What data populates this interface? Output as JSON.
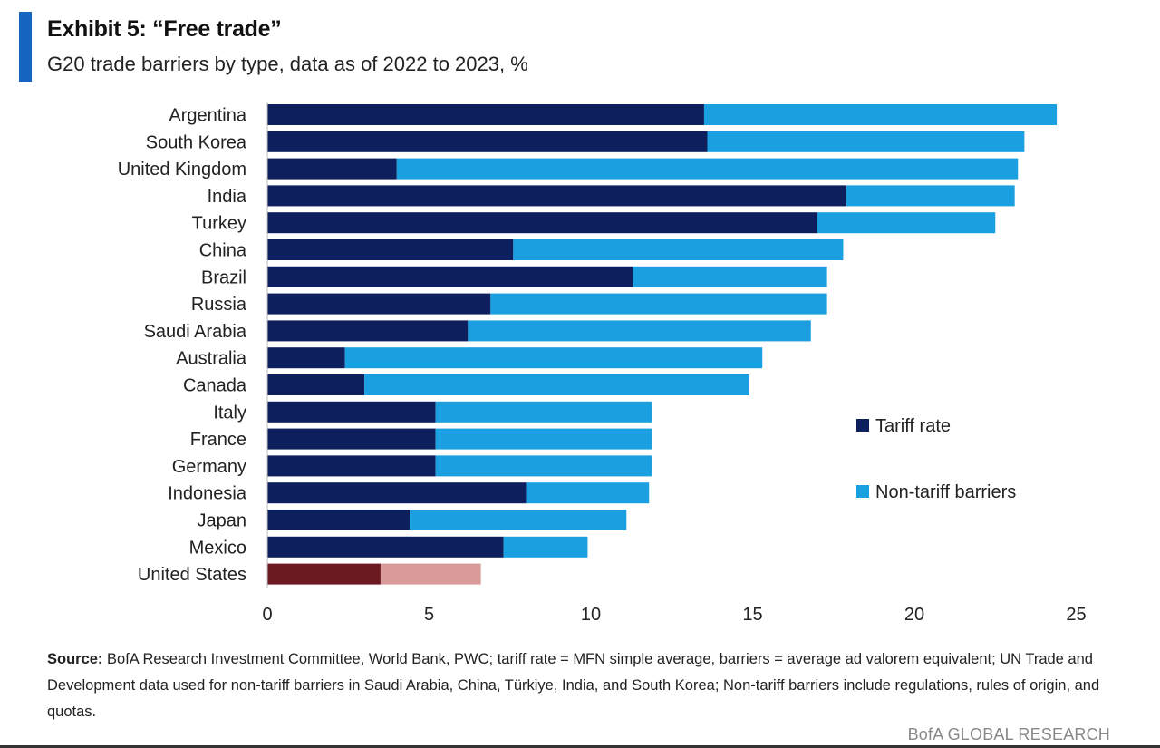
{
  "header": {
    "title": "Exhibit 5: “Free trade”",
    "subtitle": "G20 trade barriers by type, data as of 2022 to 2023, %"
  },
  "colors": {
    "accent": "#1565c0",
    "tariff": "#0d1f5c",
    "non_tariff": "#1a9fe0",
    "us_tariff": "#6b1a22",
    "us_non_tariff": "#d99a9a"
  },
  "chart_data": {
    "type": "bar",
    "orientation": "horizontal",
    "stacked": true,
    "categories": [
      "Argentina",
      "South Korea",
      "United Kingdom",
      "India",
      "Turkey",
      "China",
      "Brazil",
      "Russia",
      "Saudi Arabia",
      "Australia",
      "Canada",
      "Italy",
      "France",
      "Germany",
      "Indonesia",
      "Japan",
      "Mexico",
      "United States"
    ],
    "series": [
      {
        "name": "Tariff rate",
        "values": [
          13.5,
          13.6,
          4.0,
          17.9,
          17.0,
          7.6,
          11.3,
          6.9,
          6.2,
          2.4,
          3.0,
          5.2,
          5.2,
          5.2,
          8.0,
          4.4,
          7.3,
          3.5
        ]
      },
      {
        "name": "Non-tariff barriers",
        "values": [
          10.9,
          9.8,
          19.2,
          5.2,
          5.5,
          10.2,
          6.0,
          10.4,
          10.6,
          12.9,
          11.9,
          6.7,
          6.7,
          6.7,
          3.8,
          6.7,
          2.6,
          3.1
        ]
      }
    ],
    "xlim": [
      0,
      25
    ],
    "xticks": [
      "0",
      "5",
      "10",
      "15",
      "20",
      "25"
    ],
    "legend": "right",
    "grid": false
  },
  "footer": {
    "source_label": "Source:",
    "source_text": " BofA Research Investment Committee, World Bank, PWC; tariff rate = MFN simple average, barriers = average ad valorem equivalent; UN Trade and Development data used for non-tariff barriers in Saudi Arabia, China, Türkiye, India, and South Korea; Non-tariff barriers include regulations, rules of origin, and quotas.",
    "brand": "BofA GLOBAL RESEARCH"
  }
}
